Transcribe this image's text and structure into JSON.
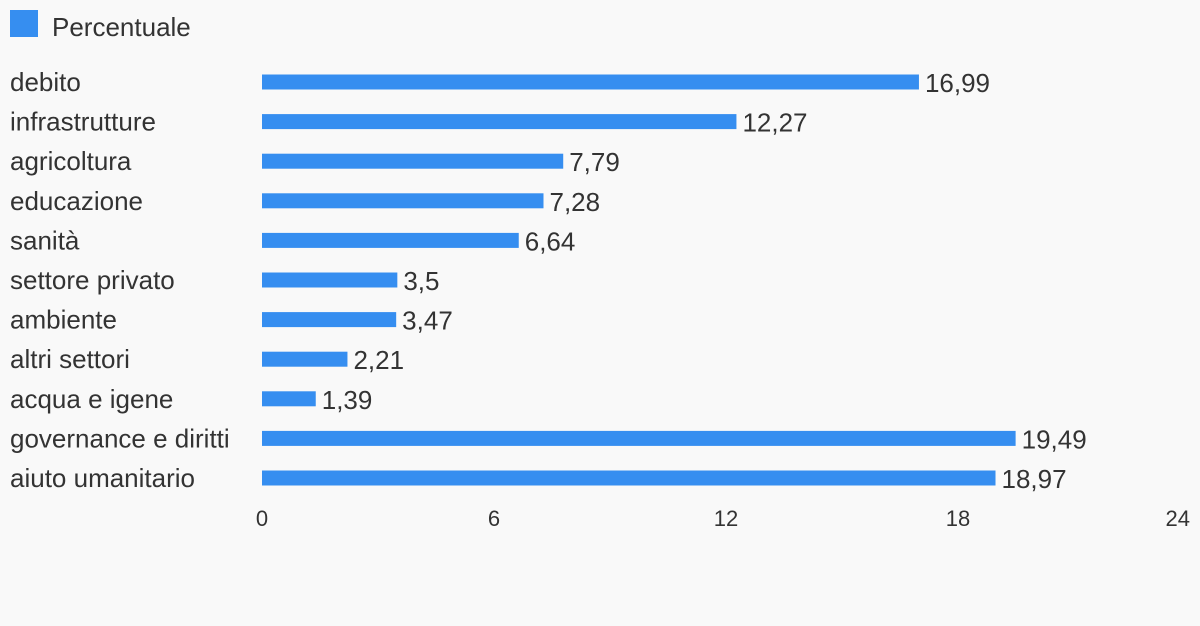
{
  "chart_data": {
    "type": "bar",
    "orientation": "horizontal",
    "categories": [
      "debito",
      "infrastrutture",
      "agricoltura",
      "educazione",
      "sanità",
      "settore privato",
      "ambiente",
      "altri settori",
      "acqua e igene",
      "governance e diritti",
      "aiuto umanitario"
    ],
    "series": [
      {
        "name": "Percentuale",
        "color": "#368ef0",
        "values": [
          16.99,
          12.27,
          7.79,
          7.28,
          6.64,
          3.5,
          3.47,
          2.21,
          1.39,
          19.49,
          18.97
        ],
        "value_labels": [
          "16,99",
          "12,27",
          "7,79",
          "7,28",
          "6,64",
          "3,5",
          "3,47",
          "2,21",
          "1,39",
          "19,49",
          "18,97"
        ]
      }
    ],
    "xlim": [
      0,
      24
    ],
    "xticks": [
      0,
      6,
      12,
      18,
      24
    ],
    "xtick_labels": [
      "0",
      "6",
      "12",
      "18",
      "24"
    ],
    "legend_position": "top-left",
    "grid": false
  },
  "colors": {
    "background": "#f9f9f9",
    "text": "#333333",
    "bar": "#368ef0"
  }
}
